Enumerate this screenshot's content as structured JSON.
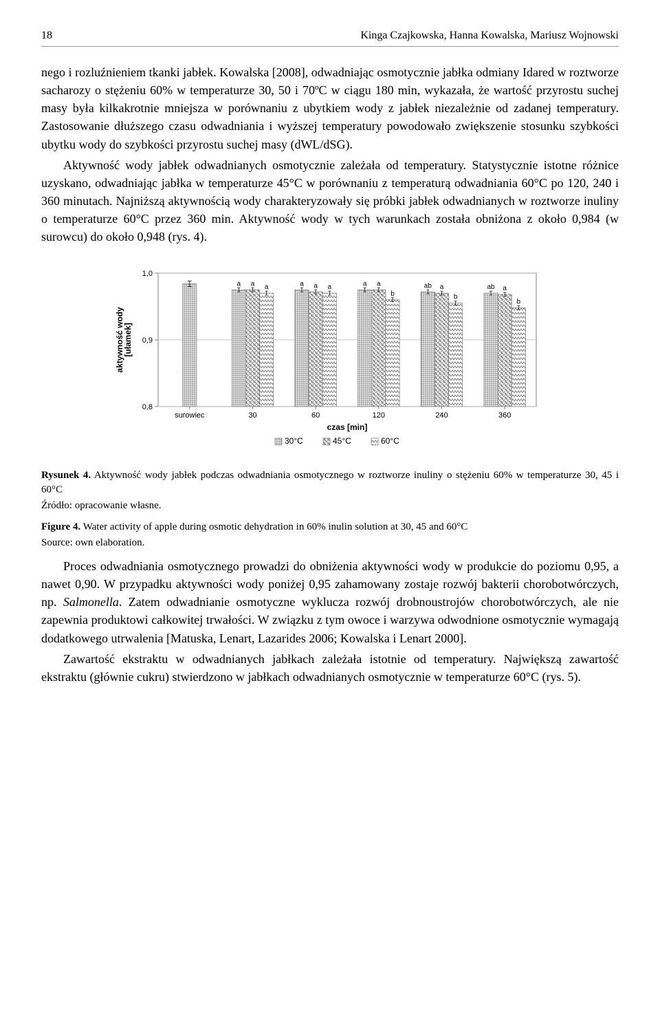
{
  "header": {
    "page": "18",
    "authors": "Kinga Czajkowska, Hanna Kowalska, Mariusz Wojnowski"
  },
  "para1": "nego i rozluźnieniem tkanki jabłek. Kowalska [2008], odwadniając osmotycznie jabłka odmiany Idared w roztworze sacharozy o stężeniu 60% w temperaturze 30, 50 i 70ºC w ciągu 180 min, wykazała, że wartość przyrostu suchej masy była kilkakrotnie mniejsza w porównaniu z ubytkiem wody z jabłek niezależnie od zadanej temperatury. Zastosowanie dłuższego czasu odwadniania i wyższej temperatury powodowało zwiększenie stosunku szybkości ubytku wody do szybkości przyrostu suchej masy (dWL/dSG).",
  "para2": "Aktywność wody jabłek odwadnianych osmotycznie zależała od temperatury. Statystycznie istotne różnice uzyskano, odwadniając jabłka w temperaturze 45°C w porównaniu z temperaturą odwadniania 60°C po 120, 240 i 360 minutach. Najniższą aktywnością wody charakteryzowały się próbki jabłek odwadnianych w roztworze inuliny o temperaturze 60°C przez 360 min. Aktywność wody w tych warunkach została obniżona z około 0,984 (w surowcu) do około 0,948 (rys. 4).",
  "chart": {
    "type": "bar",
    "ylabel": "aktywność wody\n[ułamek]",
    "xlabel": "czas [min]",
    "ylim": [
      0.8,
      1.0
    ],
    "yticks": [
      0.8,
      0.9,
      1.0
    ],
    "ytick_labels": [
      "0,8",
      "0,9",
      "1,0"
    ],
    "categories": [
      "surowiec",
      "30",
      "60",
      "120",
      "240",
      "360"
    ],
    "series": [
      {
        "name": "30°C",
        "pattern": "crosshatch",
        "color": "#808080",
        "values": [
          null,
          0.975,
          0.975,
          0.975,
          0.972,
          0.97
        ],
        "labels": [
          null,
          "a",
          "a",
          "a",
          "ab",
          "ab"
        ]
      },
      {
        "name": "45°C",
        "pattern": "diagcross",
        "color": "#808080",
        "values": [
          null,
          0.975,
          0.972,
          0.975,
          0.97,
          0.968
        ],
        "labels": [
          null,
          "a",
          "a",
          "a",
          "a",
          "a"
        ]
      },
      {
        "name": "60°C",
        "pattern": "zigzag",
        "color": "#707070",
        "values": [
          null,
          0.97,
          0.97,
          0.96,
          0.955,
          0.948
        ],
        "labels": [
          null,
          "a",
          "a",
          "b",
          "b",
          "b"
        ]
      }
    ],
    "surowiec": {
      "value": 0.984,
      "err": 0.004,
      "pattern": "crosshatch"
    },
    "err": 0.003,
    "bar_width": 0.22,
    "background_color": "#ffffff",
    "grid_color": "#b0b0b0",
    "axis_color": "#808080",
    "label_fontsize": 11,
    "axis_title_fontsize": 12
  },
  "legend": [
    "30°C",
    "45°C",
    "60°C"
  ],
  "caption_pl_title": "Rysunek 4.",
  "caption_pl": " Aktywność wody jabłek podczas odwadniania osmotycznego w roztworze inuliny o stężeniu 60% w temperaturze 30, 45 i 60°C",
  "source_pl": "Źródło: opracowanie własne.",
  "caption_en_title": "Figure 4.",
  "caption_en": " Water activity of apple during osmotic dehydration in 60% inulin solution at 30, 45 and 60°C",
  "source_en": "Source: own elaboration.",
  "para3a": "Proces odwadniania osmotycznego prowadzi do obniżenia aktywności wody w produkcie do poziomu 0,95, a nawet 0,90. W przypadku aktywności wody poniżej 0,95 zahamowany zostaje rozwój bakterii chorobotwórczych, np. ",
  "para3_it": "Salmonella",
  "para3b": ". Zatem odwadnianie osmotyczne wyklucza rozwój drobnoustrojów chorobotwórczych, ale nie zapewnia produktowi całkowitej trwałości. W związku z tym owoce i warzywa odwodnione osmotycznie wymagają dodatkowego utrwalenia [Matuska, Lenart, Lazarides 2006; Kowalska i Lenart 2000].",
  "para4": "Zawartość ekstraktu w odwadnianych jabłkach zależała istotnie od temperatury. Największą zawartość ekstraktu (głównie cukru) stwierdzono w jabłkach odwadnianych osmotycznie w temperaturze 60°C (rys. 5)."
}
